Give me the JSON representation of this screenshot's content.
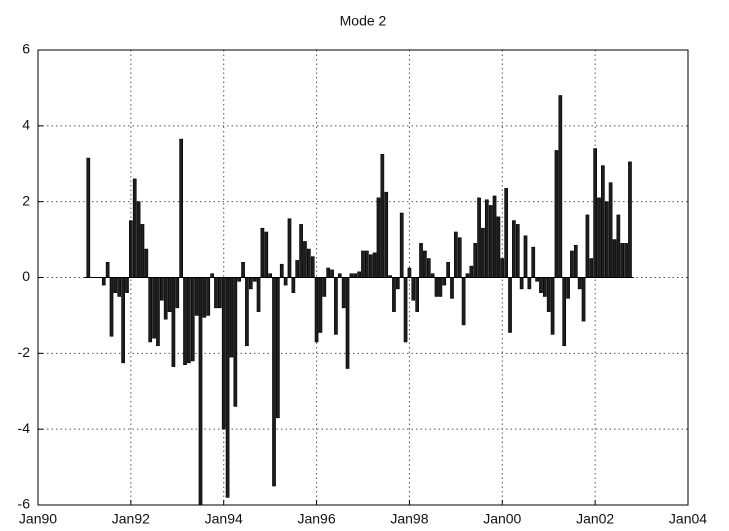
{
  "chart_data": {
    "type": "bar",
    "title": "Mode 2",
    "x": [
      "1991-02",
      "1991-03",
      "1991-04",
      "1991-05",
      "1991-06",
      "1991-07",
      "1991-08",
      "1991-09",
      "1991-10",
      "1991-11",
      "1991-12",
      "1992-01",
      "1992-02",
      "1992-03",
      "1992-04",
      "1992-05",
      "1992-06",
      "1992-07",
      "1992-08",
      "1992-09",
      "1992-10",
      "1992-11",
      "1992-12",
      "1993-01",
      "1993-02",
      "1993-03",
      "1993-04",
      "1993-05",
      "1993-06",
      "1993-07",
      "1993-08",
      "1993-09",
      "1993-10",
      "1993-11",
      "1993-12",
      "1994-01",
      "1994-02",
      "1994-03",
      "1994-04",
      "1994-05",
      "1994-06",
      "1994-07",
      "1994-08",
      "1994-09",
      "1994-10",
      "1994-11",
      "1994-12",
      "1995-01",
      "1995-02",
      "1995-03",
      "1995-04",
      "1995-05",
      "1995-06",
      "1995-07",
      "1995-08",
      "1995-09",
      "1995-10",
      "1995-11",
      "1995-12",
      "1996-01",
      "1996-02",
      "1996-03",
      "1996-04",
      "1996-05",
      "1996-06",
      "1996-07",
      "1996-08",
      "1996-09",
      "1996-10",
      "1996-11",
      "1996-12",
      "1997-01",
      "1997-02",
      "1997-03",
      "1997-04",
      "1997-05",
      "1997-06",
      "1997-07",
      "1997-08",
      "1997-09",
      "1997-10",
      "1997-11",
      "1997-12",
      "1998-01",
      "1998-02",
      "1998-03",
      "1998-04",
      "1998-05",
      "1998-06",
      "1998-07",
      "1998-08",
      "1998-09",
      "1998-10",
      "1998-11",
      "1998-12",
      "1999-01",
      "1999-02",
      "1999-03",
      "1999-04",
      "1999-05",
      "1999-06",
      "1999-07",
      "1999-08",
      "1999-09",
      "1999-10",
      "1999-11",
      "1999-12",
      "2000-01",
      "2000-02",
      "2000-03",
      "2000-04",
      "2000-05",
      "2000-06",
      "2000-07",
      "2000-08",
      "2000-09",
      "2000-10",
      "2000-11",
      "2000-12",
      "2001-01",
      "2001-02",
      "2001-03",
      "2001-04",
      "2001-05",
      "2001-06",
      "2001-07",
      "2001-08",
      "2001-09",
      "2001-10",
      "2001-11",
      "2001-12",
      "2002-01",
      "2002-02",
      "2002-03",
      "2002-04",
      "2002-05",
      "2002-06",
      "2002-07",
      "2002-08",
      "2002-09",
      "2002-10"
    ],
    "values": [
      3.15,
      0,
      0,
      0,
      -0.2,
      0.4,
      -1.55,
      -0.4,
      -0.5,
      -2.25,
      -0.4,
      1.5,
      2.6,
      2.0,
      1.4,
      0.75,
      -1.7,
      -1.6,
      -1.8,
      -0.6,
      -1.1,
      -0.9,
      -2.35,
      -0.8,
      3.65,
      -2.3,
      -2.25,
      -2.2,
      -1.0,
      -6.0,
      -1.05,
      -1.0,
      0.1,
      -0.8,
      -0.8,
      -4.0,
      -5.8,
      -2.1,
      -3.4,
      -0.1,
      0.4,
      -1.8,
      -0.3,
      -0.1,
      -0.9,
      1.3,
      1.2,
      0.1,
      -5.5,
      -3.7,
      0.35,
      -0.2,
      1.55,
      -0.4,
      0.45,
      1.4,
      0.95,
      0.75,
      0.55,
      -1.7,
      -1.45,
      -0.5,
      0.25,
      0.2,
      -1.5,
      0.1,
      -0.8,
      -2.4,
      0.1,
      0.1,
      0.15,
      0.7,
      0.7,
      0.6,
      0.65,
      2.1,
      3.25,
      2.25,
      0.05,
      -0.9,
      -0.3,
      1.7,
      -1.7,
      0.25,
      -0.6,
      -0.9,
      0.9,
      0.7,
      0.5,
      0.1,
      -0.5,
      -0.5,
      -0.2,
      0.4,
      -0.55,
      1.2,
      1.05,
      -1.25,
      0.1,
      0.3,
      0.9,
      2.1,
      1.3,
      2.05,
      1.9,
      2.15,
      1.6,
      0.5,
      2.35,
      -1.45,
      1.5,
      1.4,
      -0.3,
      1.1,
      -0.3,
      0.8,
      -0.1,
      -0.4,
      -0.5,
      -0.9,
      -1.5,
      3.35,
      4.8,
      -1.8,
      -0.55,
      0.7,
      0.85,
      -0.3,
      -1.15,
      1.65,
      0.5,
      3.4,
      2.1,
      2.95,
      2.0,
      2.5,
      1.0,
      1.65,
      0.9,
      0.9,
      3.05
    ],
    "color": "#1e1e1e",
    "xlim": [
      "1990-01",
      "2004-01"
    ],
    "xticks": [
      {
        "value": "1990-01",
        "label": "Jan90"
      },
      {
        "value": "1992-01",
        "label": "Jan92"
      },
      {
        "value": "1994-01",
        "label": "Jan94"
      },
      {
        "value": "1996-01",
        "label": "Jan96"
      },
      {
        "value": "1998-01",
        "label": "Jan98"
      },
      {
        "value": "2000-01",
        "label": "Jan00"
      },
      {
        "value": "2002-01",
        "label": "Jan02"
      },
      {
        "value": "2004-01",
        "label": "Jan04"
      }
    ],
    "ylim": [
      -6,
      6
    ],
    "yticks": [
      -6,
      -4,
      -2,
      0,
      2,
      4,
      6
    ],
    "grid": true
  }
}
